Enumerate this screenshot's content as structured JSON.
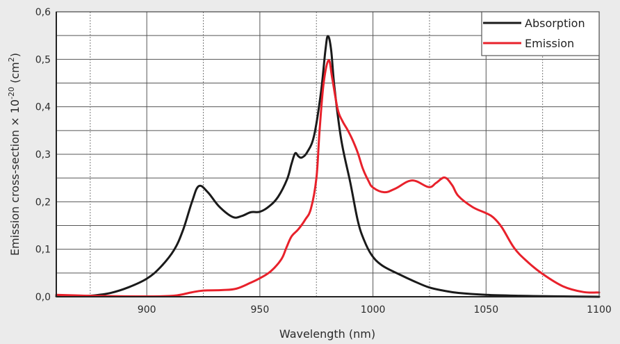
{
  "chart_data": {
    "type": "line",
    "title": "",
    "xlabel": "Wavelength (nm)",
    "ylabel": {
      "prefix": "Emission cross-section × 10",
      "exponent": "-20",
      "unit_open": " (cm",
      "unit_exp": "2",
      "unit_close": ")"
    },
    "xlim": [
      860,
      1100
    ],
    "ylim": [
      0,
      0.6
    ],
    "x_ticks": [
      900,
      950,
      1000,
      1050,
      1100
    ],
    "x_tick_labels": [
      "900",
      "950",
      "1000",
      "1050",
      "1100"
    ],
    "x_minor_dotted": [
      875,
      925,
      975,
      1025,
      1075
    ],
    "y_ticks": [
      0,
      0.1,
      0.2,
      0.3,
      0.4,
      0.5,
      0.6
    ],
    "y_tick_labels": [
      "0,0",
      "0,1",
      "0,2",
      "0,3",
      "0,4",
      "0,5",
      "0,6"
    ],
    "y_minor": [
      0.05,
      0.15,
      0.25,
      0.35,
      0.45,
      0.55
    ],
    "grid": true,
    "legend_position": "top-right",
    "series": [
      {
        "name": "Absorption",
        "color": "#1a1a1a",
        "x": [
          860,
          870,
          875,
          884,
          892,
          900,
          906,
          912,
          916,
          920,
          923,
          927,
          932,
          938,
          942,
          946,
          950,
          954,
          958,
          962,
          964,
          965.6,
          967,
          968.5,
          971,
          974,
          977,
          979,
          980.1,
          981.5,
          983,
          986,
          990,
          993.3,
          996,
          999.4,
          1004,
          1011.7,
          1018,
          1024.6,
          1031,
          1037.8,
          1050,
          1065,
          1080,
          1100
        ],
        "y": [
          0.001,
          0.001,
          0.002,
          0.008,
          0.02,
          0.038,
          0.062,
          0.098,
          0.14,
          0.2,
          0.233,
          0.22,
          0.19,
          0.168,
          0.17,
          0.178,
          0.179,
          0.19,
          0.21,
          0.247,
          0.28,
          0.302,
          0.296,
          0.293,
          0.305,
          0.34,
          0.43,
          0.52,
          0.549,
          0.52,
          0.44,
          0.33,
          0.24,
          0.16,
          0.12,
          0.088,
          0.066,
          0.047,
          0.033,
          0.02,
          0.013,
          0.008,
          0.004,
          0.002,
          0.001,
          0.0
        ]
      },
      {
        "name": "Emission",
        "color": "#e8212b",
        "x": [
          860,
          868,
          875,
          890,
          905.7,
          913.4,
          919.6,
          925,
          933.4,
          939.6,
          945.7,
          950,
          954.9,
          959.5,
          961.7,
          964,
          967,
          970,
          972.6,
          975,
          976.4,
          978.2,
          980.4,
          982,
          984.4,
          986.5,
          988.7,
          991,
          993.3,
          995.5,
          997.9,
          1000,
          1005,
          1010,
          1017.3,
          1024.6,
          1028,
          1031.7,
          1035,
          1037.8,
          1044,
          1050,
          1053.2,
          1057,
          1062.4,
          1068,
          1074.7,
          1084,
          1093,
          1100
        ],
        "y": [
          0.004,
          0.003,
          0.002,
          0.001,
          0.001,
          0.003,
          0.009,
          0.013,
          0.014,
          0.017,
          0.029,
          0.039,
          0.054,
          0.079,
          0.103,
          0.127,
          0.142,
          0.162,
          0.186,
          0.25,
          0.35,
          0.45,
          0.498,
          0.46,
          0.395,
          0.37,
          0.352,
          0.33,
          0.303,
          0.27,
          0.245,
          0.23,
          0.22,
          0.228,
          0.245,
          0.231,
          0.24,
          0.251,
          0.235,
          0.212,
          0.189,
          0.176,
          0.167,
          0.146,
          0.103,
          0.075,
          0.049,
          0.022,
          0.01,
          0.009
        ]
      }
    ]
  }
}
